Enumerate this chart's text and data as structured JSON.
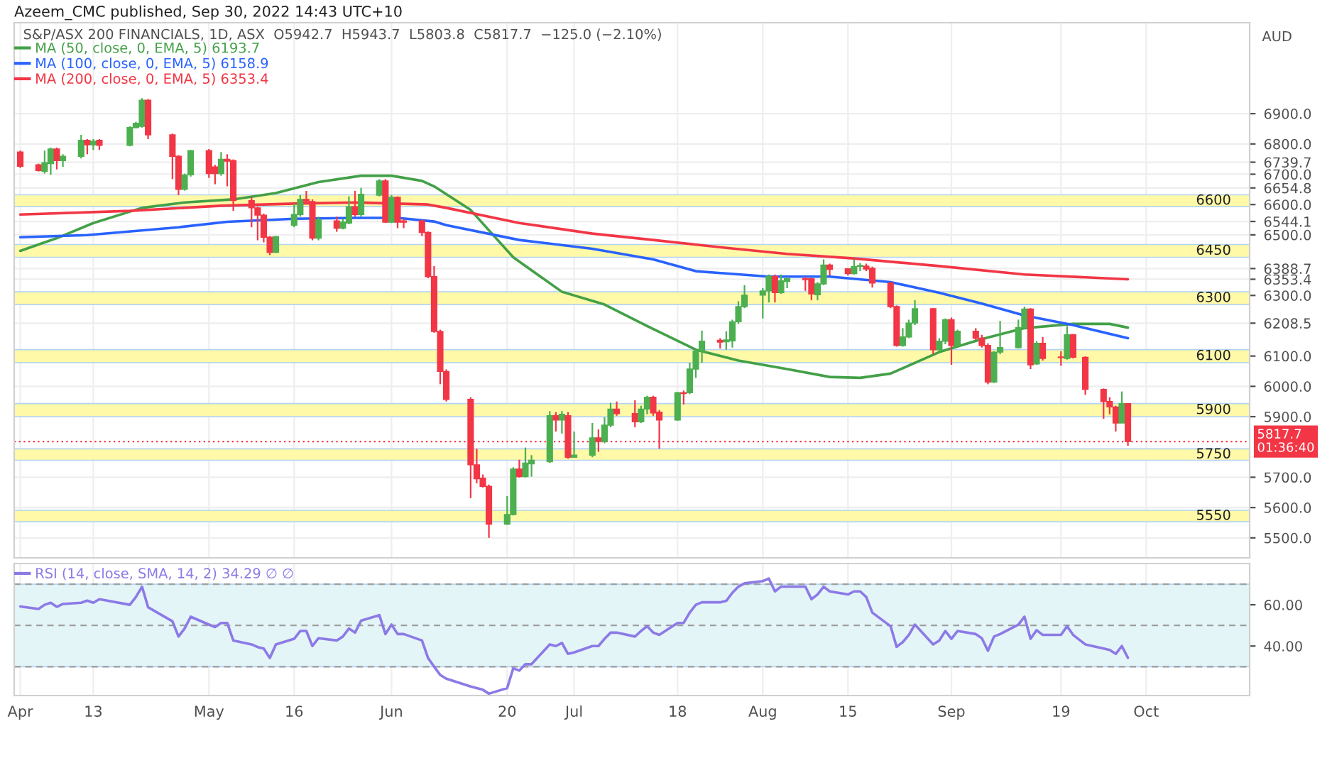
{
  "chart_data": [
    {
      "type": "candlestick",
      "subtitle": "Azeem_CMC published, Sep 30, 2022 14:43 UTC+10",
      "title": "S&P/ASX 200 FINANCIALS, 1D, ASX  O5942.7  H5943.7  L5803.8  C5817.7  −125.0 (−2.10%)",
      "ylabel": "AUD",
      "x": [
        "2022-04-01",
        "2022-04-04",
        "2022-04-05",
        "2022-04-06",
        "2022-04-07",
        "2022-04-08",
        "2022-04-11",
        "2022-04-12",
        "2022-04-13",
        "2022-04-14",
        "2022-04-19",
        "2022-04-20",
        "2022-04-21",
        "2022-04-22",
        "2022-04-26",
        "2022-04-27",
        "2022-04-28",
        "2022-04-29",
        "2022-05-02",
        "2022-05-03",
        "2022-05-04",
        "2022-05-05",
        "2022-05-06",
        "2022-05-09",
        "2022-05-10",
        "2022-05-11",
        "2022-05-12",
        "2022-05-13",
        "2022-05-16",
        "2022-05-17",
        "2022-05-18",
        "2022-05-19",
        "2022-05-20",
        "2022-05-23",
        "2022-05-24",
        "2022-05-25",
        "2022-05-26",
        "2022-05-27",
        "2022-05-30",
        "2022-05-31",
        "2022-06-01",
        "2022-06-02",
        "2022-06-03",
        "2022-06-06",
        "2022-06-07",
        "2022-06-08",
        "2022-06-09",
        "2022-06-10",
        "2022-06-14",
        "2022-06-15",
        "2022-06-16",
        "2022-06-17",
        "2022-06-20",
        "2022-06-21",
        "2022-06-22",
        "2022-06-23",
        "2022-06-24",
        "2022-06-27",
        "2022-06-28",
        "2022-06-29",
        "2022-06-30",
        "2022-07-01",
        "2022-07-04",
        "2022-07-05",
        "2022-07-06",
        "2022-07-07",
        "2022-07-08",
        "2022-07-11",
        "2022-07-12",
        "2022-07-13",
        "2022-07-14",
        "2022-07-15",
        "2022-07-18",
        "2022-07-19",
        "2022-07-20",
        "2022-07-21",
        "2022-07-22",
        "2022-07-25",
        "2022-07-26",
        "2022-07-27",
        "2022-07-28",
        "2022-07-29",
        "2022-08-01",
        "2022-08-02",
        "2022-08-03",
        "2022-08-04",
        "2022-08-05",
        "2022-08-08",
        "2022-08-09",
        "2022-08-10",
        "2022-08-11",
        "2022-08-12",
        "2022-08-15",
        "2022-08-16",
        "2022-08-17",
        "2022-08-18",
        "2022-08-19",
        "2022-08-22",
        "2022-08-23",
        "2022-08-24",
        "2022-08-25",
        "2022-08-26",
        "2022-08-29",
        "2022-08-30",
        "2022-08-31",
        "2022-09-01",
        "2022-09-02",
        "2022-09-05",
        "2022-09-06",
        "2022-09-07",
        "2022-09-08",
        "2022-09-09",
        "2022-09-12",
        "2022-09-13",
        "2022-09-14",
        "2022-09-15",
        "2022-09-16",
        "2022-09-19",
        "2022-09-20",
        "2022-09-21",
        "2022-09-23",
        "2022-09-26",
        "2022-09-27",
        "2022-09-28",
        "2022-09-29",
        "2022-09-30"
      ],
      "xlim": [
        "2022-03-31",
        "2022-10-20"
      ],
      "xticks": [
        {
          "value": "2022-04-01",
          "label": null
        },
        {
          "value": "2022-04-13",
          "label": null
        },
        {
          "value": "2022-05-02",
          "label": null
        },
        {
          "value": "2022-05-16",
          "label": null
        },
        {
          "value": "2022-06-01",
          "label": null
        },
        {
          "value": "2022-06-20",
          "label": null
        },
        {
          "value": "2022-07-01",
          "label": null
        },
        {
          "value": "2022-07-18",
          "label": null
        },
        {
          "value": "2022-08-01",
          "label": null
        },
        {
          "value": "2022-08-15",
          "label": null
        },
        {
          "value": "2022-09-01",
          "label": null
        },
        {
          "value": "2022-09-19",
          "label": null
        },
        {
          "value": "2022-10-03",
          "label": null
        }
      ],
      "ylim": [
        5434,
        7200
      ],
      "yticks": [
        {
          "value": 5500,
          "label": "5500.0"
        },
        {
          "value": 5600,
          "label": "5600.0"
        },
        {
          "value": 5700,
          "label": "5700.0"
        },
        {
          "value": 5900,
          "label": "5900.0"
        },
        {
          "value": 6000,
          "label": "6000.0"
        },
        {
          "value": 6100,
          "label": "6100.0"
        },
        {
          "value": 6300,
          "label": "6300.0"
        },
        {
          "value": 6500,
          "label": "6500.0"
        },
        {
          "value": 6600,
          "label": "6600.0"
        },
        {
          "value": 6700,
          "label": "6700.0"
        },
        {
          "value": 6800,
          "label": "6800.0"
        },
        {
          "value": 6900,
          "label": "6900.0"
        },
        {
          "value": 6739.7,
          "label": "6739.7"
        },
        {
          "value": 6654.8,
          "label": "6654.8"
        },
        {
          "value": 6544.1,
          "label": "6544.1"
        },
        {
          "value": 6388.7,
          "label": "6388.7"
        },
        {
          "value": 6353.4,
          "label": "6353.4"
        },
        {
          "value": 6208.5,
          "label": "6208.5"
        }
      ],
      "tick_labels": "y",
      "grid": true,
      "legend": "top left",
      "bands": [
        {
          "axis": "y",
          "from": 6593,
          "to": 6632,
          "label": "6600",
          "color": "#fff9a8"
        },
        {
          "axis": "y",
          "from": 6426,
          "to": 6468,
          "label": "6450",
          "color": "#fff9a8"
        },
        {
          "axis": "y",
          "from": 6270,
          "to": 6312,
          "label": "6300",
          "color": "#fff9a8"
        },
        {
          "axis": "y",
          "from": 6078,
          "to": 6121,
          "label": "6100",
          "color": "#fff9a8"
        },
        {
          "axis": "y",
          "from": 5900,
          "to": 5943,
          "label": "5900",
          "color": "#fff9a8"
        },
        {
          "axis": "y",
          "from": 5756,
          "to": 5794,
          "label": "5750",
          "color": "#fff9a8"
        },
        {
          "axis": "y",
          "from": 5553,
          "to": 5591,
          "label": "5550",
          "color": "#fff9a8"
        }
      ],
      "ref_lines": [
        {
          "axis": "y",
          "value": 5817.7,
          "label": "5817.7\n01:36:40",
          "color": "#f23645",
          "line_style": "dotted"
        }
      ],
      "series": [
        {
          "ohlc": [
            [
              6773,
              6778,
              6721,
              6726
            ],
            [
              6731,
              6735,
              6709,
              6712
            ],
            [
              6709,
              6778,
              6702,
              6738
            ],
            [
              6735,
              6788,
              6698,
              6783
            ],
            [
              6783,
              6788,
              6716,
              6745
            ],
            [
              6745,
              6766,
              6724,
              6759
            ],
            [
              6759,
              6830,
              6752,
              6812
            ],
            [
              6812,
              6816,
              6766,
              6797
            ],
            [
              6797,
              6816,
              6780,
              6809
            ],
            [
              6812,
              6816,
              6780,
              6795
            ],
            [
              6795,
              6858,
              6792,
              6854
            ],
            [
              6854,
              6873,
              6851,
              6868
            ],
            [
              6858,
              6951,
              6854,
              6944
            ],
            [
              6944,
              6948,
              6816,
              6830
            ],
            [
              6830,
              6834,
              6684,
              6759
            ],
            [
              6759,
              6763,
              6631,
              6650
            ],
            [
              6650,
              6702,
              6646,
              6698
            ],
            [
              6698,
              6780,
              6692,
              6778
            ],
            [
              6778,
              6783,
              6688,
              6702
            ],
            [
              6724,
              6731,
              6667,
              6702
            ],
            [
              6702,
              6773,
              6695,
              6749
            ],
            [
              6749,
              6766,
              6660,
              6743
            ],
            [
              6745,
              6749,
              6579,
              6613
            ],
            [
              6613,
              6624,
              6525,
              6589
            ],
            [
              6589,
              6593,
              6482,
              6565
            ],
            [
              6565,
              6570,
              6475,
              6492
            ],
            [
              6492,
              6496,
              6433,
              6442
            ],
            [
              6442,
              6496,
              6440,
              6494
            ],
            [
              6532,
              6603,
              6525,
              6567
            ],
            [
              6567,
              6631,
              6560,
              6617
            ],
            [
              6617,
              6645,
              6603,
              6610
            ],
            [
              6610,
              6617,
              6482,
              6489
            ],
            [
              6489,
              6560,
              6482,
              6549
            ],
            [
              6546,
              6560,
              6510,
              6522
            ],
            [
              6522,
              6553,
              6518,
              6542
            ],
            [
              6539,
              6627,
              6535,
              6593
            ],
            [
              6593,
              6645,
              6560,
              6567
            ],
            [
              6567,
              6655,
              6560,
              6634
            ],
            [
              6631,
              6684,
              6627,
              6678
            ],
            [
              6678,
              6684,
              6539,
              6542
            ],
            [
              6542,
              6631,
              6539,
              6624
            ],
            [
              6624,
              6627,
              6522,
              6542
            ],
            [
              6546,
              6553,
              6522,
              6542
            ],
            [
              6546,
              6550,
              6496,
              6508
            ],
            [
              6508,
              6511,
              6357,
              6362
            ],
            [
              6362,
              6397,
              6177,
              6181
            ],
            [
              6181,
              6187,
              6007,
              6049
            ],
            [
              6049,
              6056,
              5950,
              5957
            ],
            [
              5957,
              5964,
              5631,
              5741
            ],
            [
              5741,
              5794,
              5680,
              5695
            ],
            [
              5697,
              5709,
              5666,
              5670
            ],
            [
              5670,
              5676,
              5500,
              5545
            ],
            [
              5545,
              5638,
              5543,
              5577
            ],
            [
              5577,
              5733,
              5574,
              5727
            ],
            [
              5727,
              5758,
              5699,
              5702
            ],
            [
              5702,
              5798,
              5699,
              5747
            ],
            [
              5744,
              5773,
              5702,
              5756
            ],
            [
              5751,
              5918,
              5747,
              5903
            ],
            [
              5903,
              5915,
              5851,
              5889
            ],
            [
              5889,
              5918,
              5844,
              5908
            ],
            [
              5903,
              5915,
              5761,
              5766
            ],
            [
              5766,
              5851,
              5766,
              5773
            ],
            [
              5773,
              5879,
              5766,
              5830
            ],
            [
              5830,
              5858,
              5784,
              5818
            ],
            [
              5818,
              5898,
              5812,
              5872
            ],
            [
              5872,
              5946,
              5865,
              5925
            ],
            [
              5925,
              5950,
              5903,
              5910
            ],
            [
              5910,
              5954,
              5865,
              5883
            ],
            [
              5883,
              5936,
              5879,
              5925
            ],
            [
              5925,
              5969,
              5908,
              5964
            ],
            [
              5964,
              5969,
              5903,
              5912
            ],
            [
              5915,
              5922,
              5794,
              5889
            ],
            [
              5889,
              5981,
              5886,
              5979
            ],
            [
              5979,
              5986,
              5940,
              5976
            ],
            [
              5979,
              6078,
              5974,
              6057
            ],
            [
              6057,
              6121,
              6028,
              6116
            ],
            [
              6116,
              6184,
              6078,
              6149
            ],
            [
              6152,
              6159,
              6125,
              6146
            ],
            [
              6147,
              6182,
              6121,
              6153
            ],
            [
              6150,
              6220,
              6128,
              6213
            ],
            [
              6213,
              6281,
              6206,
              6263
            ],
            [
              6263,
              6334,
              6258,
              6301
            ],
            [
              6301,
              6324,
              6224,
              6315
            ],
            [
              6315,
              6369,
              6277,
              6363
            ],
            [
              6363,
              6369,
              6277,
              6309
            ],
            [
              6309,
              6369,
              6305,
              6348
            ],
            [
              6346,
              6361,
              6324,
              6355
            ],
            [
              6355,
              6362,
              6315,
              6352
            ],
            [
              6355,
              6358,
              6284,
              6305
            ],
            [
              6302,
              6344,
              6284,
              6338
            ],
            [
              6338,
              6419,
              6334,
              6400
            ],
            [
              6400,
              6405,
              6366,
              6386
            ],
            [
              6388,
              6390,
              6366,
              6372
            ],
            [
              6372,
              6419,
              6369,
              6395
            ],
            [
              6396,
              6407,
              6380,
              6399
            ],
            [
              6397,
              6405,
              6380,
              6387
            ],
            [
              6390,
              6395,
              6326,
              6341
            ],
            [
              6341,
              6344,
              6258,
              6263
            ],
            [
              6263,
              6267,
              6131,
              6135
            ],
            [
              6135,
              6192,
              6131,
              6163
            ],
            [
              6163,
              6220,
              6159,
              6209
            ],
            [
              6209,
              6284,
              6202,
              6256
            ],
            [
              6256,
              6258,
              6106,
              6121
            ],
            [
              6121,
              6159,
              6116,
              6149
            ],
            [
              6149,
              6224,
              6139,
              6220
            ],
            [
              6220,
              6227,
              6071,
              6135
            ],
            [
              6135,
              6187,
              6131,
              6182
            ],
            [
              6182,
              6192,
              6153,
              6159
            ],
            [
              6159,
              6170,
              6128,
              6135
            ],
            [
              6135,
              6142,
              6007,
              6014
            ],
            [
              6014,
              6116,
              6011,
              6113
            ],
            [
              6113,
              6216,
              6106,
              6128
            ],
            [
              6128,
              6220,
              6125,
              6194
            ],
            [
              6194,
              6263,
              6191,
              6255
            ],
            [
              6255,
              6258,
              6057,
              6071
            ],
            [
              6074,
              6149,
              6071,
              6142
            ],
            [
              6142,
              6163,
              6085,
              6092
            ],
            [
              6097,
              6116,
              6068,
              6095
            ],
            [
              6092,
              6199,
              6088,
              6170
            ],
            [
              6170,
              6173,
              6092,
              6096
            ],
            [
              6096,
              6099,
              5972,
              5990
            ],
            [
              5990,
              5993,
              5893,
              5950
            ],
            [
              5950,
              5964,
              5908,
              5932
            ],
            [
              5932,
              5936,
              5851,
              5879
            ],
            [
              5879,
              5983,
              5879,
              5943
            ],
            [
              5942.7,
              5943.7,
              5803.8,
              5817.7
            ]
          ],
          "colors": [
            "#f23645",
            "#f23645",
            "#4caf50",
            "#4caf50",
            "#f23645",
            "#4caf50",
            "#4caf50",
            "#f23645",
            "#4caf50",
            "#f23645",
            "#4caf50",
            "#4caf50",
            "#4caf50",
            "#f23645",
            "#f23645",
            "#f23645",
            "#4caf50",
            "#4caf50",
            "#f23645",
            "#f23645",
            "#4caf50",
            "#f23645",
            "#f23645",
            "#f23645",
            "#f23645",
            "#f23645",
            "#f23645",
            "#4caf50",
            "#4caf50",
            "#4caf50",
            "#f23645",
            "#f23645",
            "#4caf50",
            "#f23645",
            "#4caf50",
            "#4caf50",
            "#f23645",
            "#4caf50",
            "#4caf50",
            "#f23645",
            "#4caf50",
            "#f23645",
            "#f23645",
            "#f23645",
            "#f23645",
            "#f23645",
            "#f23645",
            "#f23645",
            "#f23645",
            "#f23645",
            "#f23645",
            "#f23645",
            "#4caf50",
            "#4caf50",
            "#f23645",
            "#4caf50",
            "#4caf50",
            "#4caf50",
            "#f23645",
            "#4caf50",
            "#f23645",
            "#4caf50",
            "#4caf50",
            "#f23645",
            "#4caf50",
            "#4caf50",
            "#f23645",
            "#f23645",
            "#4caf50",
            "#4caf50",
            "#f23645",
            "#f23645",
            "#4caf50",
            "#f23645",
            "#4caf50",
            "#4caf50",
            "#4caf50",
            "#f23645",
            "#4caf50",
            "#4caf50",
            "#4caf50",
            "#4caf50",
            "#4caf50",
            "#4caf50",
            "#f23645",
            "#4caf50",
            "#4caf50",
            "#f23645",
            "#f23645",
            "#4caf50",
            "#4caf50",
            "#f23645",
            "#f23645",
            "#4caf50",
            "#4caf50",
            "#f23645",
            "#f23645",
            "#f23645",
            "#f23645",
            "#4caf50",
            "#4caf50",
            "#4caf50",
            "#f23645",
            "#4caf50",
            "#4caf50",
            "#f23645",
            "#4caf50",
            "#f23645",
            "#f23645",
            "#f23645",
            "#4caf50",
            "#4caf50",
            "#4caf50",
            "#4caf50",
            "#f23645",
            "#4caf50",
            "#f23645",
            "#f23645",
            "#4caf50",
            "#f23645",
            "#f23645",
            "#f23645",
            "#f23645",
            "#f23645",
            "#4caf50",
            "#f23645"
          ]
        },
        {
          "type": "line",
          "name": "MA (50, close, 0, EMA, 5) 6193.7",
          "color": "#43a047",
          "x": [
            "2022-04-01",
            "2022-04-07",
            "2022-04-13",
            "2022-04-21",
            "2022-04-28",
            "2022-05-06",
            "2022-05-13",
            "2022-05-20",
            "2022-05-27",
            "2022-06-01",
            "2022-06-06",
            "2022-06-08",
            "2022-06-14",
            "2022-06-21",
            "2022-06-29",
            "2022-07-06",
            "2022-07-13",
            "2022-07-21",
            "2022-07-28",
            "2022-08-05",
            "2022-08-12",
            "2022-08-17",
            "2022-08-22",
            "2022-08-30",
            "2022-09-06",
            "2022-09-13",
            "2022-09-21",
            "2022-09-27",
            "2022-09-30"
          ],
          "values": [
            6447,
            6489,
            6539,
            6589,
            6607,
            6617,
            6638,
            6674,
            6695,
            6695,
            6678,
            6660,
            6582,
            6426,
            6312,
            6270,
            6199,
            6121,
            6085,
            6057,
            6031,
            6028,
            6042,
            6113,
            6156,
            6192,
            6206,
            6206,
            6193.7
          ]
        },
        {
          "type": "line",
          "name": "MA (100, close, 0, EMA, 5) 6158.9",
          "color": "#2962ff",
          "x": [
            "2022-04-01",
            "2022-04-12",
            "2022-04-27",
            "2022-05-05",
            "2022-05-16",
            "2022-05-26",
            "2022-06-02",
            "2022-06-08",
            "2022-06-10",
            "2022-06-22",
            "2022-07-04",
            "2022-07-14",
            "2022-07-21",
            "2022-08-02",
            "2022-08-12",
            "2022-08-22",
            "2022-08-30",
            "2022-09-06",
            "2022-09-13",
            "2022-09-21",
            "2022-09-30"
          ],
          "values": [
            6492,
            6499,
            6525,
            6543,
            6553,
            6556,
            6556,
            6544,
            6532,
            6483,
            6454,
            6419,
            6380,
            6362,
            6362,
            6344,
            6309,
            6273,
            6234,
            6202,
            6158.9
          ]
        },
        {
          "type": "line",
          "name": "MA (200, close, 0, EMA, 5) 6353.4",
          "color": "#f23645",
          "x": [
            "2022-04-01",
            "2022-04-19",
            "2022-05-04",
            "2022-05-16",
            "2022-05-26",
            "2022-06-07",
            "2022-06-10",
            "2022-06-22",
            "2022-07-04",
            "2022-07-14",
            "2022-07-26",
            "2022-08-05",
            "2022-08-16",
            "2022-08-30",
            "2022-09-13",
            "2022-09-30"
          ],
          "values": [
            6567,
            6579,
            6596,
            6603,
            6607,
            6600,
            6589,
            6539,
            6504,
            6483,
            6457,
            6437,
            6422,
            6397,
            6369,
            6353.4
          ]
        }
      ]
    },
    {
      "type": "line",
      "x": [
        "2022-04-01",
        "2022-04-04",
        "2022-04-05",
        "2022-04-06",
        "2022-04-07",
        "2022-04-08",
        "2022-04-11",
        "2022-04-12",
        "2022-04-13",
        "2022-04-14",
        "2022-04-19",
        "2022-04-20",
        "2022-04-21",
        "2022-04-22",
        "2022-04-26",
        "2022-04-27",
        "2022-04-28",
        "2022-04-29",
        "2022-05-02",
        "2022-05-03",
        "2022-05-04",
        "2022-05-05",
        "2022-05-06",
        "2022-05-09",
        "2022-05-10",
        "2022-05-11",
        "2022-05-12",
        "2022-05-13",
        "2022-05-16",
        "2022-05-17",
        "2022-05-18",
        "2022-05-19",
        "2022-05-20",
        "2022-05-23",
        "2022-05-24",
        "2022-05-25",
        "2022-05-26",
        "2022-05-27",
        "2022-05-30",
        "2022-05-31",
        "2022-06-01",
        "2022-06-02",
        "2022-06-03",
        "2022-06-06",
        "2022-06-07",
        "2022-06-08",
        "2022-06-09",
        "2022-06-10",
        "2022-06-14",
        "2022-06-15",
        "2022-06-16",
        "2022-06-17",
        "2022-06-20",
        "2022-06-21",
        "2022-06-22",
        "2022-06-23",
        "2022-06-24",
        "2022-06-27",
        "2022-06-28",
        "2022-06-29",
        "2022-06-30",
        "2022-07-01",
        "2022-07-04",
        "2022-07-05",
        "2022-07-06",
        "2022-07-07",
        "2022-07-08",
        "2022-07-11",
        "2022-07-12",
        "2022-07-13",
        "2022-07-14",
        "2022-07-15",
        "2022-07-18",
        "2022-07-19",
        "2022-07-20",
        "2022-07-21",
        "2022-07-22",
        "2022-07-25",
        "2022-07-26",
        "2022-07-27",
        "2022-07-28",
        "2022-07-29",
        "2022-08-01",
        "2022-08-02",
        "2022-08-03",
        "2022-08-04",
        "2022-08-05",
        "2022-08-08",
        "2022-08-09",
        "2022-08-10",
        "2022-08-11",
        "2022-08-12",
        "2022-08-15",
        "2022-08-16",
        "2022-08-17",
        "2022-08-18",
        "2022-08-19",
        "2022-08-22",
        "2022-08-23",
        "2022-08-24",
        "2022-08-25",
        "2022-08-26",
        "2022-08-29",
        "2022-08-30",
        "2022-08-31",
        "2022-09-01",
        "2022-09-02",
        "2022-09-05",
        "2022-09-06",
        "2022-09-07",
        "2022-09-08",
        "2022-09-09",
        "2022-09-12",
        "2022-09-13",
        "2022-09-14",
        "2022-09-15",
        "2022-09-16",
        "2022-09-19",
        "2022-09-20",
        "2022-09-21",
        "2022-09-23",
        "2022-09-26",
        "2022-09-27",
        "2022-09-28",
        "2022-09-29",
        "2022-09-30"
      ],
      "xlim": [
        "2022-03-31",
        "2022-10-20"
      ],
      "xticks": [
        {
          "value": "2022-04-01",
          "label": "Apr"
        },
        {
          "value": "2022-04-13",
          "label": "13"
        },
        {
          "value": "2022-05-02",
          "label": "May"
        },
        {
          "value": "2022-05-16",
          "label": "16"
        },
        {
          "value": "2022-06-01",
          "label": "Jun"
        },
        {
          "value": "2022-06-20",
          "label": "20"
        },
        {
          "value": "2022-07-01",
          "label": "Jul"
        },
        {
          "value": "2022-07-18",
          "label": "18"
        },
        {
          "value": "2022-08-01",
          "label": "Aug"
        },
        {
          "value": "2022-08-15",
          "label": "15"
        },
        {
          "value": "2022-09-01",
          "label": "Sep"
        },
        {
          "value": "2022-09-19",
          "label": "19"
        },
        {
          "value": "2022-10-03",
          "label": "Oct"
        }
      ],
      "ylim": [
        16,
        80
      ],
      "yticks": [
        {
          "value": 40,
          "label": "40.00"
        },
        {
          "value": 60,
          "label": "60.00"
        }
      ],
      "grid": true,
      "legend": "top left",
      "bands": [
        {
          "axis": "y",
          "from": 30,
          "to": 70,
          "color": "#e4f5f8"
        }
      ],
      "ref_lines": [
        {
          "axis": "y",
          "value": 70,
          "color": "#9e9e9e",
          "line_style": "dashed"
        },
        {
          "axis": "y",
          "value": 50,
          "color": "#9e9e9e",
          "line_style": "dashed"
        },
        {
          "axis": "y",
          "value": 30,
          "color": "#9e9e9e",
          "line_style": "dashed"
        }
      ],
      "series": [
        {
          "name": "RSI (14, close, SMA, 14, 2) 34.29 ∅ ∅",
          "color": "#8c7ae6",
          "values": [
            59.2,
            58,
            60,
            61,
            59,
            60.4,
            61,
            62,
            61,
            62.7,
            60,
            63.8,
            68.8,
            58.8,
            52,
            44.6,
            48.5,
            54.2,
            50.4,
            49.2,
            51.2,
            51.2,
            42.7,
            40.8,
            39.5,
            38.8,
            34.2,
            40.8,
            43.5,
            47.3,
            47.3,
            40,
            43.8,
            42.7,
            44.6,
            48.5,
            46.5,
            52.3,
            55,
            45.8,
            50.4,
            45.8,
            45.8,
            42.7,
            34.2,
            30,
            26,
            24.2,
            20.4,
            19.6,
            18.8,
            16.9,
            19.6,
            29.2,
            28.1,
            31.2,
            31.2,
            40.8,
            40,
            41.5,
            36.2,
            36.9,
            40,
            40,
            43.5,
            46.5,
            46.5,
            44.6,
            47.3,
            49.6,
            46.5,
            45.4,
            51.2,
            51.2,
            56.2,
            60,
            61.2,
            61.2,
            61.9,
            65.8,
            68.8,
            70.4,
            71.5,
            72.7,
            66.5,
            68.8,
            68.8,
            68.8,
            62.7,
            65,
            68.8,
            66.5,
            65,
            66.5,
            66.5,
            63.8,
            56.2,
            49.6,
            39.6,
            41.9,
            45.4,
            50.4,
            40.8,
            42.7,
            47.3,
            43.5,
            47.3,
            45.8,
            43.8,
            37.7,
            44.6,
            45.8,
            50.4,
            54.2,
            43.5,
            47.7,
            45.4,
            45.4,
            49.6,
            45.4,
            40.8,
            38.8,
            38.1,
            36.2,
            40,
            34.29
          ]
        }
      ]
    }
  ]
}
